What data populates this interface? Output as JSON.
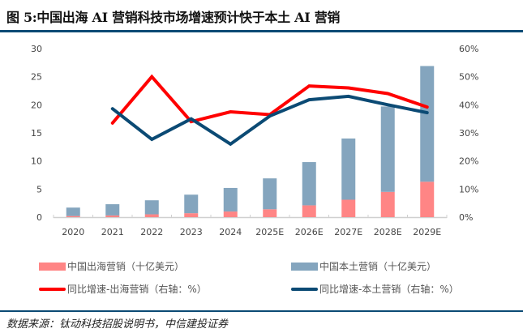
{
  "title": "图 5:中国出海 AI 营销科技市场增速预计快于本土 AI 营销",
  "source": "数据来源：钛动科技招股说明书，中信建投证券",
  "colors": {
    "overseas_bar": "#FF8585",
    "domestic_bar": "#84A5BE",
    "overseas_line": "#FF0000",
    "domestic_line": "#0B4A74",
    "rule": "#0B4A74"
  },
  "legend": {
    "overseas_bar": "中国出海营销（十亿美元）",
    "domestic_bar": "中国本土营销（十亿美元）",
    "overseas_line": "同比增速-出海营销（右轴：%）",
    "domestic_line": "同比增速-本土营销（右轴：%）"
  },
  "chart_data": {
    "type": "bar",
    "title": "图 5:中国出海 AI 营销科技市场增速预计快于本土 AI 营销",
    "xlabel": "",
    "ylabel": "",
    "categories": [
      "2020",
      "2021",
      "2022",
      "2023",
      "2024",
      "2025E",
      "2026E",
      "2027E",
      "2028E",
      "2029E"
    ],
    "ylim": [
      0,
      30
    ],
    "yticks": [
      "0",
      "5",
      "10",
      "15",
      "20",
      "25",
      "30"
    ],
    "y2lim": [
      0,
      60
    ],
    "y2ticks": [
      "0%",
      "10%",
      "20%",
      "30%",
      "40%",
      "50%",
      "60%"
    ],
    "grid": false,
    "legend_position": "bottom",
    "series": [
      {
        "name": "中国出海营销（十亿美元）",
        "type": "bar",
        "stacked": true,
        "axis": "left",
        "values": [
          0.2,
          0.3,
          0.5,
          0.7,
          1.0,
          1.4,
          2.1,
          3.1,
          4.5,
          6.3
        ]
      },
      {
        "name": "中国本土营销（十亿美元）",
        "type": "bar",
        "stacked": true,
        "axis": "left",
        "values": [
          1.5,
          2.0,
          2.5,
          3.3,
          4.2,
          5.5,
          7.7,
          10.9,
          15.2,
          20.6
        ]
      },
      {
        "name": "同比增速-出海营销（右轴：%）",
        "type": "line",
        "axis": "right",
        "values": [
          null,
          33.5,
          50.0,
          34.0,
          37.5,
          36.5,
          46.7,
          46.0,
          44.0,
          39.2
        ]
      },
      {
        "name": "同比增速-本土营销（右轴：%）",
        "type": "line",
        "axis": "right",
        "values": [
          null,
          38.6,
          27.7,
          35.0,
          26.0,
          36.0,
          41.8,
          43.0,
          40.0,
          37.2
        ]
      }
    ]
  }
}
